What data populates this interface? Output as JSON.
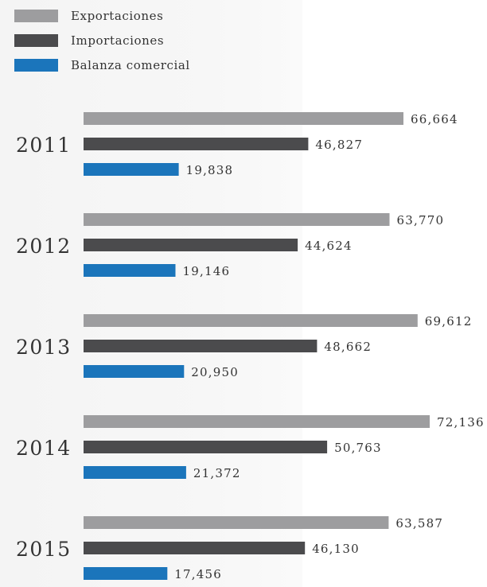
{
  "chart_data": {
    "type": "bar",
    "orientation": "horizontal",
    "categories": [
      "2011",
      "2012",
      "2013",
      "2014",
      "2015"
    ],
    "series": [
      {
        "name": "Exportaciones",
        "color": "#9d9d9f",
        "values": [
          66664,
          63770,
          69612,
          72136,
          63587
        ],
        "labels": [
          "66,664",
          "63,770",
          "69,612",
          "72,136",
          "63,587"
        ]
      },
      {
        "name": "Importaciones",
        "color": "#4b4b4d",
        "values": [
          46827,
          44624,
          48662,
          50763,
          46130
        ],
        "labels": [
          "46,827",
          "44,624",
          "48,662",
          "50,763",
          "46,130"
        ]
      },
      {
        "name": "Balanza comercial",
        "color": "#1b75bb",
        "values": [
          19838,
          19146,
          20950,
          21372,
          17456
        ],
        "labels": [
          "19,838",
          "19,146",
          "20,950",
          "21,372",
          "17,456"
        ]
      }
    ],
    "legend_position": "top-left",
    "grid": false
  }
}
